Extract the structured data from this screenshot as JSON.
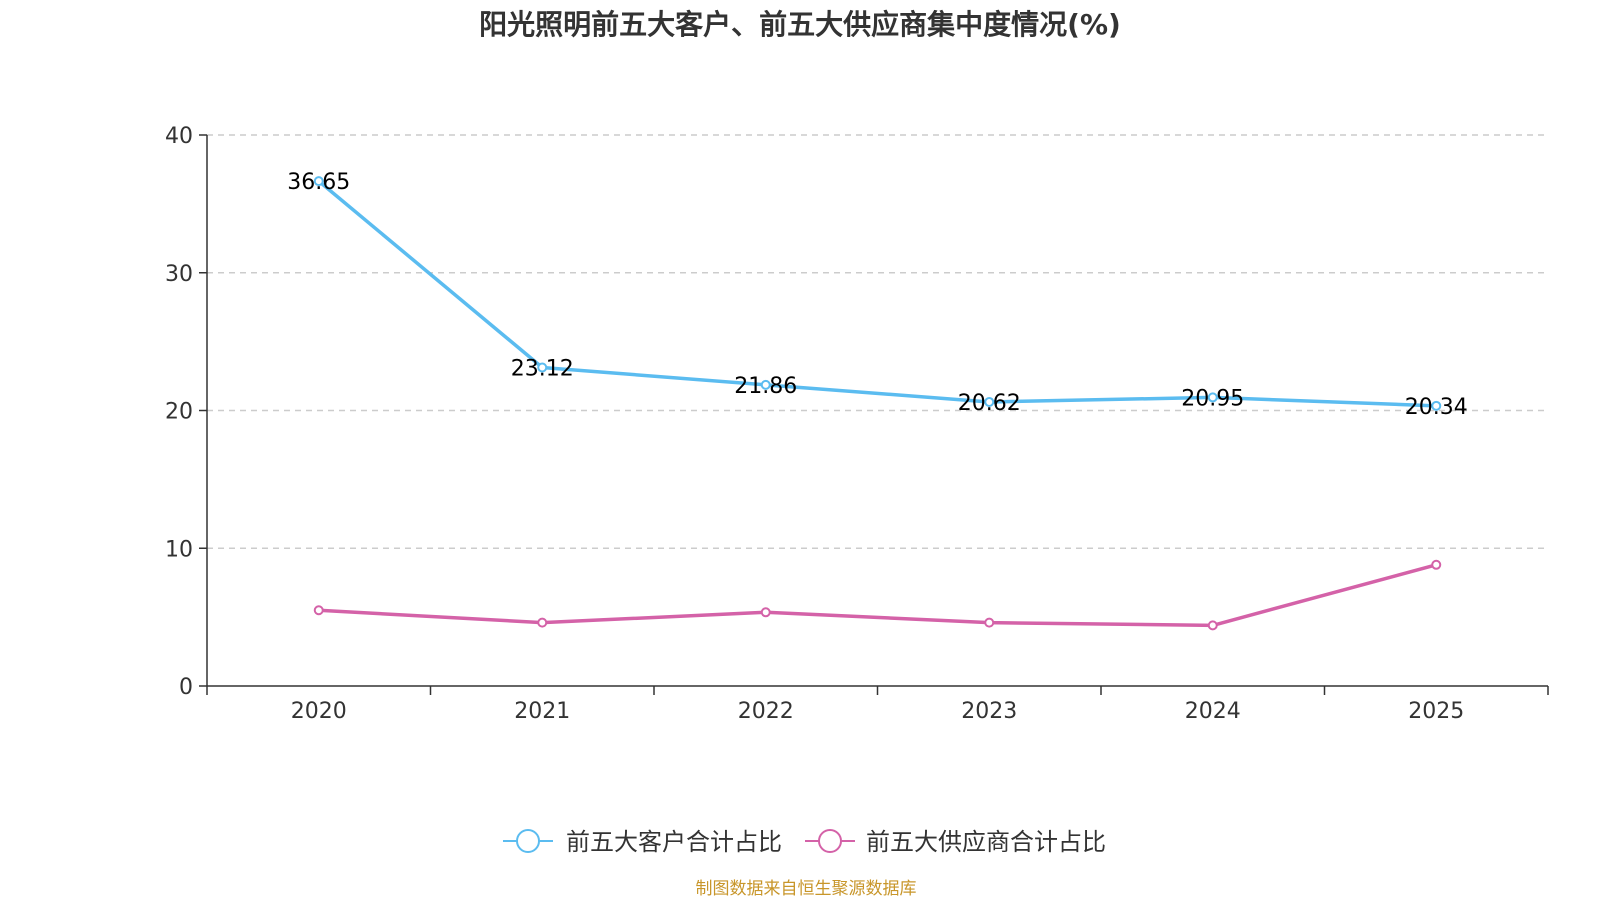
{
  "chart_data": {
    "type": "line",
    "title": "阳光照明前五大客户、前五大供应商集中度情况(%)",
    "categories": [
      "2020",
      "2021",
      "2022",
      "2023",
      "2024",
      "2025"
    ],
    "ylim": [
      0,
      40
    ],
    "yticks": [
      "0",
      "10",
      "20",
      "30",
      "40"
    ],
    "grid": true,
    "legend_position": "bottom-center",
    "series": [
      {
        "name": "前五大客户合计占比",
        "color": "#5bbcf0",
        "values": [
          36.65,
          23.12,
          21.86,
          20.62,
          20.95,
          20.34
        ],
        "labels": [
          "36.65",
          "23.12",
          "21.86",
          "20.62",
          "20.95",
          "20.34"
        ],
        "show_labels": true
      },
      {
        "name": "前五大供应商合计占比",
        "color": "#d462a8",
        "values": [
          5.5,
          4.6,
          5.35,
          4.6,
          4.4,
          8.8
        ],
        "show_labels": false
      }
    ]
  },
  "source": {
    "text": "制图数据来自恒生聚源数据库",
    "color": "#c8962a"
  }
}
